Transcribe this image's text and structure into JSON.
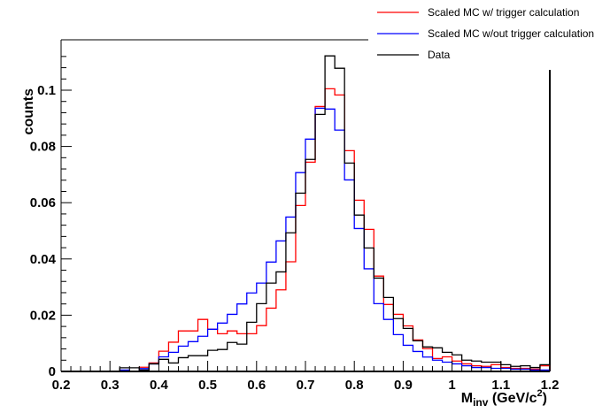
{
  "chart_data": {
    "type": "histogram",
    "title": "",
    "xlabel": {
      "main": "M",
      "sub": "inv",
      "unit_pre": " (GeV/c",
      "sup": "2",
      "unit_post": ")"
    },
    "ylabel": "counts",
    "xlim": [
      0.2,
      1.2
    ],
    "ylim": [
      0,
      0.115
    ],
    "bin_width": 0.02,
    "x_ticks": [
      "0.2",
      "0.3",
      "0.4",
      "0.5",
      "0.6",
      "0.7",
      "0.8",
      "0.9",
      "1",
      "1.1",
      "1.2"
    ],
    "y_ticks": [
      "0",
      "0.02",
      "0.04",
      "0.06",
      "0.08",
      "0.1"
    ],
    "x_tick_values": [
      0.2,
      0.3,
      0.4,
      0.5,
      0.6,
      0.7,
      0.8,
      0.9,
      1.0,
      1.1,
      1.2
    ],
    "y_tick_values": [
      0,
      0.02,
      0.04,
      0.06,
      0.08,
      0.1
    ],
    "legend_position": "top-right",
    "series": [
      {
        "name": "Scaled MC w/ trigger calculation",
        "color": "#ff0000",
        "values": [
          0,
          0,
          0,
          0,
          0,
          0,
          0,
          0,
          0.0015,
          0.003,
          0.0072,
          0.0104,
          0.0144,
          0.0144,
          0.0185,
          0.015,
          0.0134,
          0.0144,
          0.0134,
          0.0134,
          0.0163,
          0.0225,
          0.029,
          0.039,
          0.059,
          0.0744,
          0.0942,
          0.1005,
          0.0983,
          0.0785,
          0.0609,
          0.0505,
          0.0339,
          0.0238,
          0.0203,
          0.0162,
          0.0112,
          0.0081,
          0.0046,
          0.0052,
          0.0037,
          0.0027,
          0.002,
          0.0018,
          0.0024,
          0.0014,
          0.0011,
          0.0011,
          0.0008,
          0.002
        ]
      },
      {
        "name": "Scaled MC w/out trigger calculation",
        "color": "#0000ff",
        "values": [
          0,
          0,
          0,
          0,
          0,
          0,
          0.0005,
          0,
          0.001,
          0.0027,
          0.0052,
          0.0068,
          0.009,
          0.0106,
          0.0125,
          0.015,
          0.0172,
          0.0203,
          0.024,
          0.0279,
          0.0314,
          0.0389,
          0.0464,
          0.0549,
          0.0707,
          0.0826,
          0.0936,
          0.0933,
          0.0858,
          0.0681,
          0.0508,
          0.0365,
          0.0241,
          0.0185,
          0.0131,
          0.0093,
          0.0071,
          0.0051,
          0.004,
          0.0033,
          0.0027,
          0.002,
          0.0014,
          0.0014,
          0.0011,
          0.0011,
          0.0008,
          0.0008,
          0.0005,
          0.0005
        ]
      },
      {
        "name": "Data",
        "color": "#000000",
        "values": [
          0,
          0,
          0,
          0,
          0,
          0,
          0.0013,
          0.0013,
          0.0005,
          0.0027,
          0.0043,
          0.003,
          0.0049,
          0.0056,
          0.0056,
          0.0075,
          0.0078,
          0.0103,
          0.0097,
          0.0175,
          0.0241,
          0.0314,
          0.0354,
          0.0493,
          0.0634,
          0.0754,
          0.0914,
          0.1122,
          0.1078,
          0.0741,
          0.0556,
          0.0439,
          0.0332,
          0.0263,
          0.0188,
          0.0153,
          0.0109,
          0.0087,
          0.0084,
          0.0068,
          0.0059,
          0.004,
          0.0037,
          0.0033,
          0.0033,
          0.0024,
          0.0018,
          0.002,
          0.0014,
          0.0024
        ]
      }
    ]
  }
}
